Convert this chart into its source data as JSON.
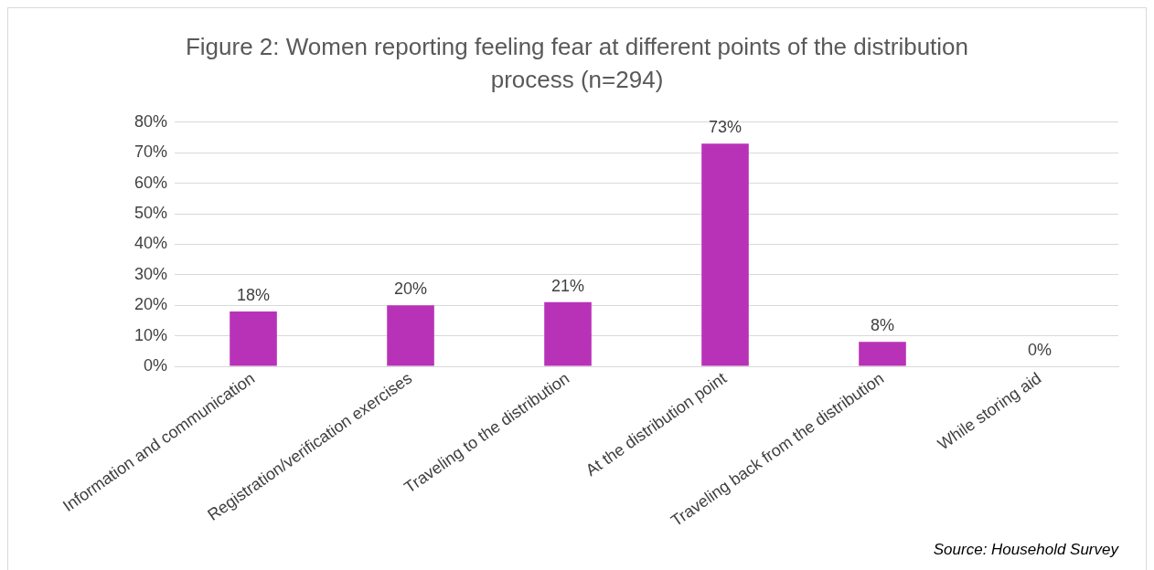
{
  "chart_data": {
    "type": "bar",
    "title": "Figure 2: Women reporting feeling fear at different points of the distribution process (n=294)",
    "categories": [
      "Information and communication",
      "Registration/verification exercises",
      "Traveling to the distribution",
      "At the distribution point",
      "Traveling back from the distribution",
      "While storing aid"
    ],
    "values": [
      18,
      20,
      21,
      73,
      8,
      0
    ],
    "value_labels": [
      "18%",
      "20%",
      "21%",
      "73%",
      "8%",
      "0%"
    ],
    "color": "#b832b8",
    "ylim": [
      0,
      80
    ],
    "yticks": [
      {
        "value": 0,
        "label": "0%"
      },
      {
        "value": 10,
        "label": "10%"
      },
      {
        "value": 20,
        "label": "20%"
      },
      {
        "value": 30,
        "label": "30%"
      },
      {
        "value": 40,
        "label": "40%"
      },
      {
        "value": 50,
        "label": "50%"
      },
      {
        "value": 60,
        "label": "60%"
      },
      {
        "value": 70,
        "label": "70%"
      },
      {
        "value": 80,
        "label": "80%"
      }
    ],
    "grid": "y",
    "annotations": [
      "Source: Household Survey"
    ]
  }
}
